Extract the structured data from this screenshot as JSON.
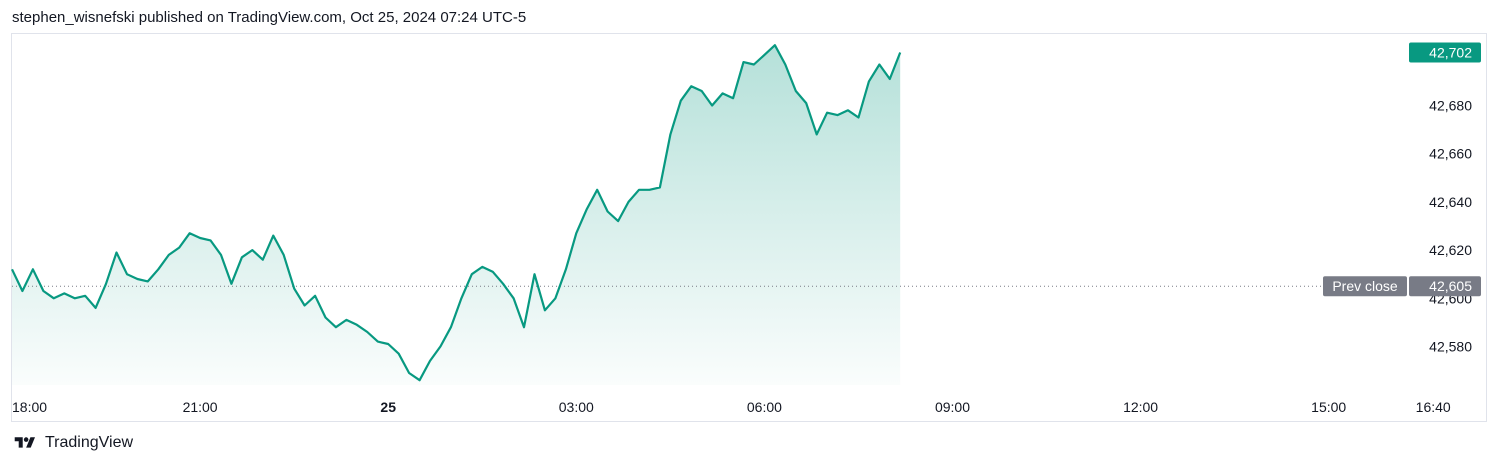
{
  "header": {
    "published_line": "stephen_wisnefski published on TradingView.com, Oct 25, 2024 07:24 UTC-5"
  },
  "footer": {
    "brand": "TradingView",
    "logo_icon": "tradingview-logo-icon"
  },
  "colors": {
    "line": "#089981",
    "fill": "#089981",
    "last_price_badge": "#089981",
    "prev_close_badge": "#787b86",
    "axis_text": "#131722",
    "dotted_line": "#787b86"
  },
  "chart_data": {
    "type": "area",
    "title": "",
    "xlabel": "",
    "ylabel": "",
    "ylim": [
      42564,
      42708
    ],
    "y_ticks": [
      "42,580",
      "42,600",
      "42,620",
      "42,640",
      "42,660",
      "42,680"
    ],
    "x_ticks": [
      {
        "label": "18:00",
        "t": 0,
        "bold": false
      },
      {
        "label": "21:00",
        "t": 180,
        "bold": false
      },
      {
        "label": "25",
        "t": 360,
        "bold": true
      },
      {
        "label": "03:00",
        "t": 540,
        "bold": false
      },
      {
        "label": "06:00",
        "t": 720,
        "bold": false
      },
      {
        "label": "09:00",
        "t": 900,
        "bold": false
      },
      {
        "label": "12:00",
        "t": 1080,
        "bold": false
      },
      {
        "label": "15:00",
        "t": 1260,
        "bold": false
      },
      {
        "label": "16:40",
        "t": 1360,
        "bold": false
      }
    ],
    "x_range_minutes_since_18_00": [
      0,
      1400
    ],
    "prev_close": {
      "label": "Prev close",
      "value": 42605,
      "value_label": "42,605"
    },
    "last_price": {
      "value": 42702,
      "value_label": "42,702"
    },
    "series": [
      {
        "x_minutes_since_18_00": [
          0,
          10,
          20,
          30,
          40,
          50,
          60,
          70,
          80,
          90,
          100,
          110,
          120,
          130,
          140,
          150,
          160,
          170,
          180,
          190,
          200,
          210,
          220,
          230,
          240,
          250,
          260,
          270,
          280,
          290,
          300,
          310,
          320,
          330,
          340,
          350,
          360,
          370,
          380,
          390,
          400,
          410,
          420,
          430,
          440,
          450,
          460,
          470,
          480,
          490,
          500,
          510,
          520,
          530,
          540,
          550,
          560,
          570,
          580,
          590,
          600,
          610,
          620,
          630,
          640,
          650,
          660,
          670,
          680,
          690,
          700,
          710,
          720,
          730,
          740,
          750,
          760,
          770,
          780,
          790,
          800,
          810,
          820,
          830,
          840,
          850
        ],
        "y": [
          42612,
          42603,
          42612,
          42603,
          42600,
          42602,
          42600,
          42601,
          42596,
          42606,
          42619,
          42610,
          42608,
          42607,
          42612,
          42618,
          42621,
          42627,
          42625,
          42624,
          42618,
          42606,
          42617,
          42620,
          42616,
          42626,
          42618,
          42604,
          42597,
          42601,
          42592,
          42588,
          42591,
          42589,
          42586,
          42582,
          42581,
          42577,
          42569,
          42566,
          42574,
          42580,
          42588,
          42600,
          42610,
          42613,
          42611,
          42606,
          42600,
          42588,
          42610,
          42595,
          42600,
          42612,
          42627,
          42637,
          42645,
          42636,
          42632,
          42640,
          42645,
          42645,
          42646,
          42668,
          42682,
          42688,
          42686,
          42680,
          42685,
          42683,
          42698,
          42697,
          42701,
          42705,
          42697,
          42686,
          42681,
          42668,
          42677,
          42676,
          42678,
          42675,
          42690,
          42697,
          42691,
          42702
        ]
      }
    ]
  }
}
